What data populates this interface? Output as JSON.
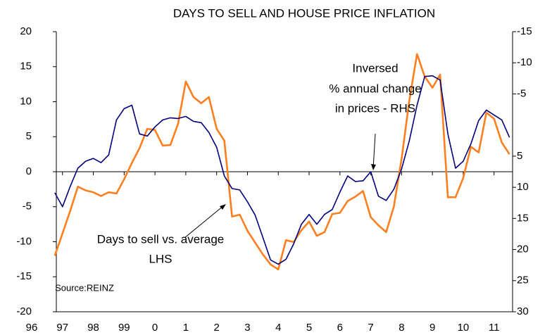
{
  "chart_data": {
    "type": "line",
    "title": "DAYS TO SELL AND HOUSE PRICE INFLATION",
    "annotations": [
      "Inversed",
      "% annual change",
      "in prices - RHS",
      "Days to sell vs. average",
      "LHS",
      "Source:REINZ"
    ],
    "x": [
      1996.75,
      1997,
      1997.25,
      1997.5,
      1997.75,
      1998,
      1998.25,
      1998.5,
      1998.75,
      1999,
      1999.25,
      1999.5,
      1999.75,
      2000,
      2000.25,
      2000.5,
      2000.75,
      2001,
      2001.25,
      2001.5,
      2001.75,
      2002,
      2002.25,
      2002.5,
      2002.75,
      2003,
      2003.25,
      2003.5,
      2003.75,
      2004,
      2004.25,
      2004.5,
      2004.75,
      2005,
      2005.25,
      2005.5,
      2005.75,
      2006,
      2006.25,
      2006.5,
      2006.75,
      2007,
      2007.25,
      2007.5,
      2007.75,
      2008,
      2008.25,
      2008.5,
      2008.75,
      2009,
      2009.25,
      2009.5,
      2009.75,
      2010,
      2010.25,
      2010.5,
      2010.75,
      2011,
      2011.25,
      2011.5
    ],
    "xlim": [
      1996.8,
      2011.6
    ],
    "xticks": [
      {
        "value": 1996,
        "label": "96"
      },
      {
        "value": 1997,
        "label": "97"
      },
      {
        "value": 1998,
        "label": "98"
      },
      {
        "value": 1999,
        "label": "99"
      },
      {
        "value": 2000,
        "label": "0"
      },
      {
        "value": 2001,
        "label": "1"
      },
      {
        "value": 2002,
        "label": "2"
      },
      {
        "value": 2003,
        "label": "3"
      },
      {
        "value": 2004,
        "label": "4"
      },
      {
        "value": 2005,
        "label": "5"
      },
      {
        "value": 2006,
        "label": "6"
      },
      {
        "value": 2007,
        "label": "7"
      },
      {
        "value": 2008,
        "label": "8"
      },
      {
        "value": 2009,
        "label": "9"
      },
      {
        "value": 2010,
        "label": "10"
      },
      {
        "value": 2011,
        "label": "11"
      }
    ],
    "ylim": [
      -20,
      20
    ],
    "yticks": [
      -20,
      -15,
      -10,
      -5,
      0,
      5,
      10,
      15,
      20
    ],
    "y2lim": [
      30,
      -15
    ],
    "y2ticks": [
      -15,
      -10,
      -5,
      5,
      10,
      15,
      20,
      25,
      30
    ],
    "series": [
      {
        "color": "#ff7f1e",
        "axis": "y2",
        "values": [
          21,
          17.4,
          13.8,
          9.9,
          10.5,
          10.8,
          11.4,
          10.8,
          11.0,
          8.7,
          6.1,
          3.7,
          0.6,
          0.8,
          3.3,
          3.2,
          -0.2,
          -7,
          -4.5,
          -3.5,
          -4.5,
          0.6,
          2.5,
          14.7,
          14.4,
          17.0,
          18.9,
          20.8,
          22.4,
          23.2,
          18.5,
          18.8,
          16.9,
          15.5,
          17.8,
          17.2,
          14.3,
          14.1,
          12.2,
          11.5,
          10.6,
          14.8,
          16.1,
          17.2,
          13.1,
          5.4,
          -3.9,
          -11.4,
          -7.8,
          -6.0,
          -8.1,
          11.6,
          11.6,
          8.5,
          3.5,
          4.4,
          -2.0,
          -1.0,
          2.8,
          4.7
        ]
      },
      {
        "color": "#000080",
        "values": [
          -3,
          -5,
          -2.1,
          0.5,
          1.5,
          1.9,
          1.3,
          2.4,
          7.4,
          9.0,
          9.5,
          5.4,
          5.1,
          6.4,
          7.4,
          7.7,
          7.6,
          7.9,
          7.2,
          7.0,
          5.6,
          3.5,
          -0.6,
          -2.4,
          -2.6,
          -4.3,
          -6.2,
          -9.4,
          -12.6,
          -13.2,
          -12.5,
          -10.3,
          -7.5,
          -6.1,
          -7.5,
          -6.1,
          -5.4,
          -2.9,
          -0.6,
          -1.4,
          -1.3,
          0.0,
          -3.5,
          -4.1,
          -2.5,
          0.4,
          4.4,
          9.5,
          13.6,
          13.7,
          13.1,
          5.4,
          0.5,
          1.5,
          4.0,
          7.3,
          8.8,
          8.1,
          7.4,
          4.9
        ]
      }
    ]
  }
}
